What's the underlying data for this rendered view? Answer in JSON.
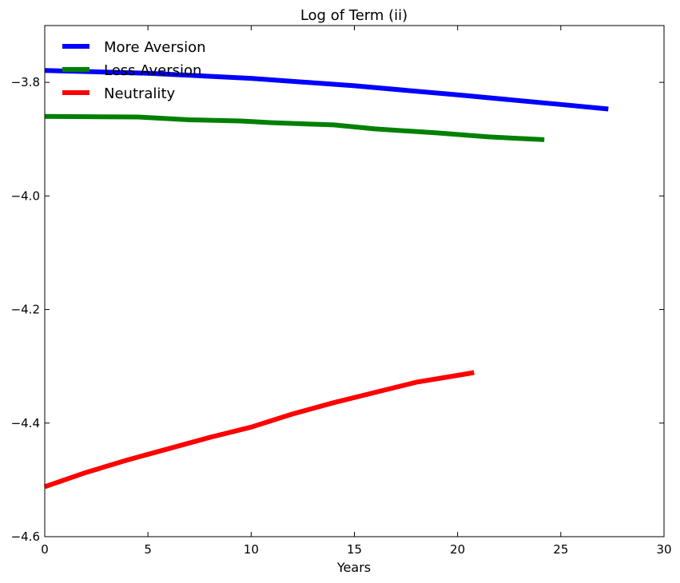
{
  "chart_data": {
    "type": "line",
    "title": "Log of Term (ii)",
    "xlabel": "Years",
    "ylabel": "",
    "xlim": [
      0,
      30
    ],
    "ylim": [
      -4.6,
      -3.7
    ],
    "xticks": [
      0,
      5,
      10,
      15,
      20,
      25,
      30
    ],
    "xtick_labels": [
      "0",
      "5",
      "10",
      "15",
      "20",
      "25",
      "30"
    ],
    "yticks": [
      -3.8,
      -4.0,
      -4.2,
      -4.4,
      -4.6
    ],
    "ytick_labels": [
      "−3.8",
      "−4.0",
      "−4.2",
      "−4.4",
      "−4.6"
    ],
    "grid": false,
    "legend_position": "upper-left",
    "series": [
      {
        "name": "More Aversion",
        "color": "#0000ff",
        "x": [
          0,
          5,
          10,
          15,
          20,
          25,
          27.3
        ],
        "y": [
          -3.779,
          -3.784,
          -3.793,
          -3.806,
          -3.822,
          -3.839,
          -3.847
        ]
      },
      {
        "name": "Less Aversion",
        "color": "#008000",
        "x": [
          0,
          4.5,
          7,
          9.5,
          11,
          14,
          16,
          19,
          21.5,
          24.2
        ],
        "y": [
          -3.86,
          -3.861,
          -3.866,
          -3.868,
          -3.871,
          -3.875,
          -3.882,
          -3.889,
          -3.896,
          -3.901
        ]
      },
      {
        "name": "Neutrality",
        "color": "#ff0000",
        "x": [
          0,
          2,
          4,
          6,
          8,
          10,
          12,
          14,
          16,
          18,
          20,
          20.8
        ],
        "y": [
          -4.512,
          -4.487,
          -4.465,
          -4.445,
          -4.425,
          -4.407,
          -4.384,
          -4.364,
          -4.346,
          -4.328,
          -4.316,
          -4.311
        ]
      }
    ]
  }
}
